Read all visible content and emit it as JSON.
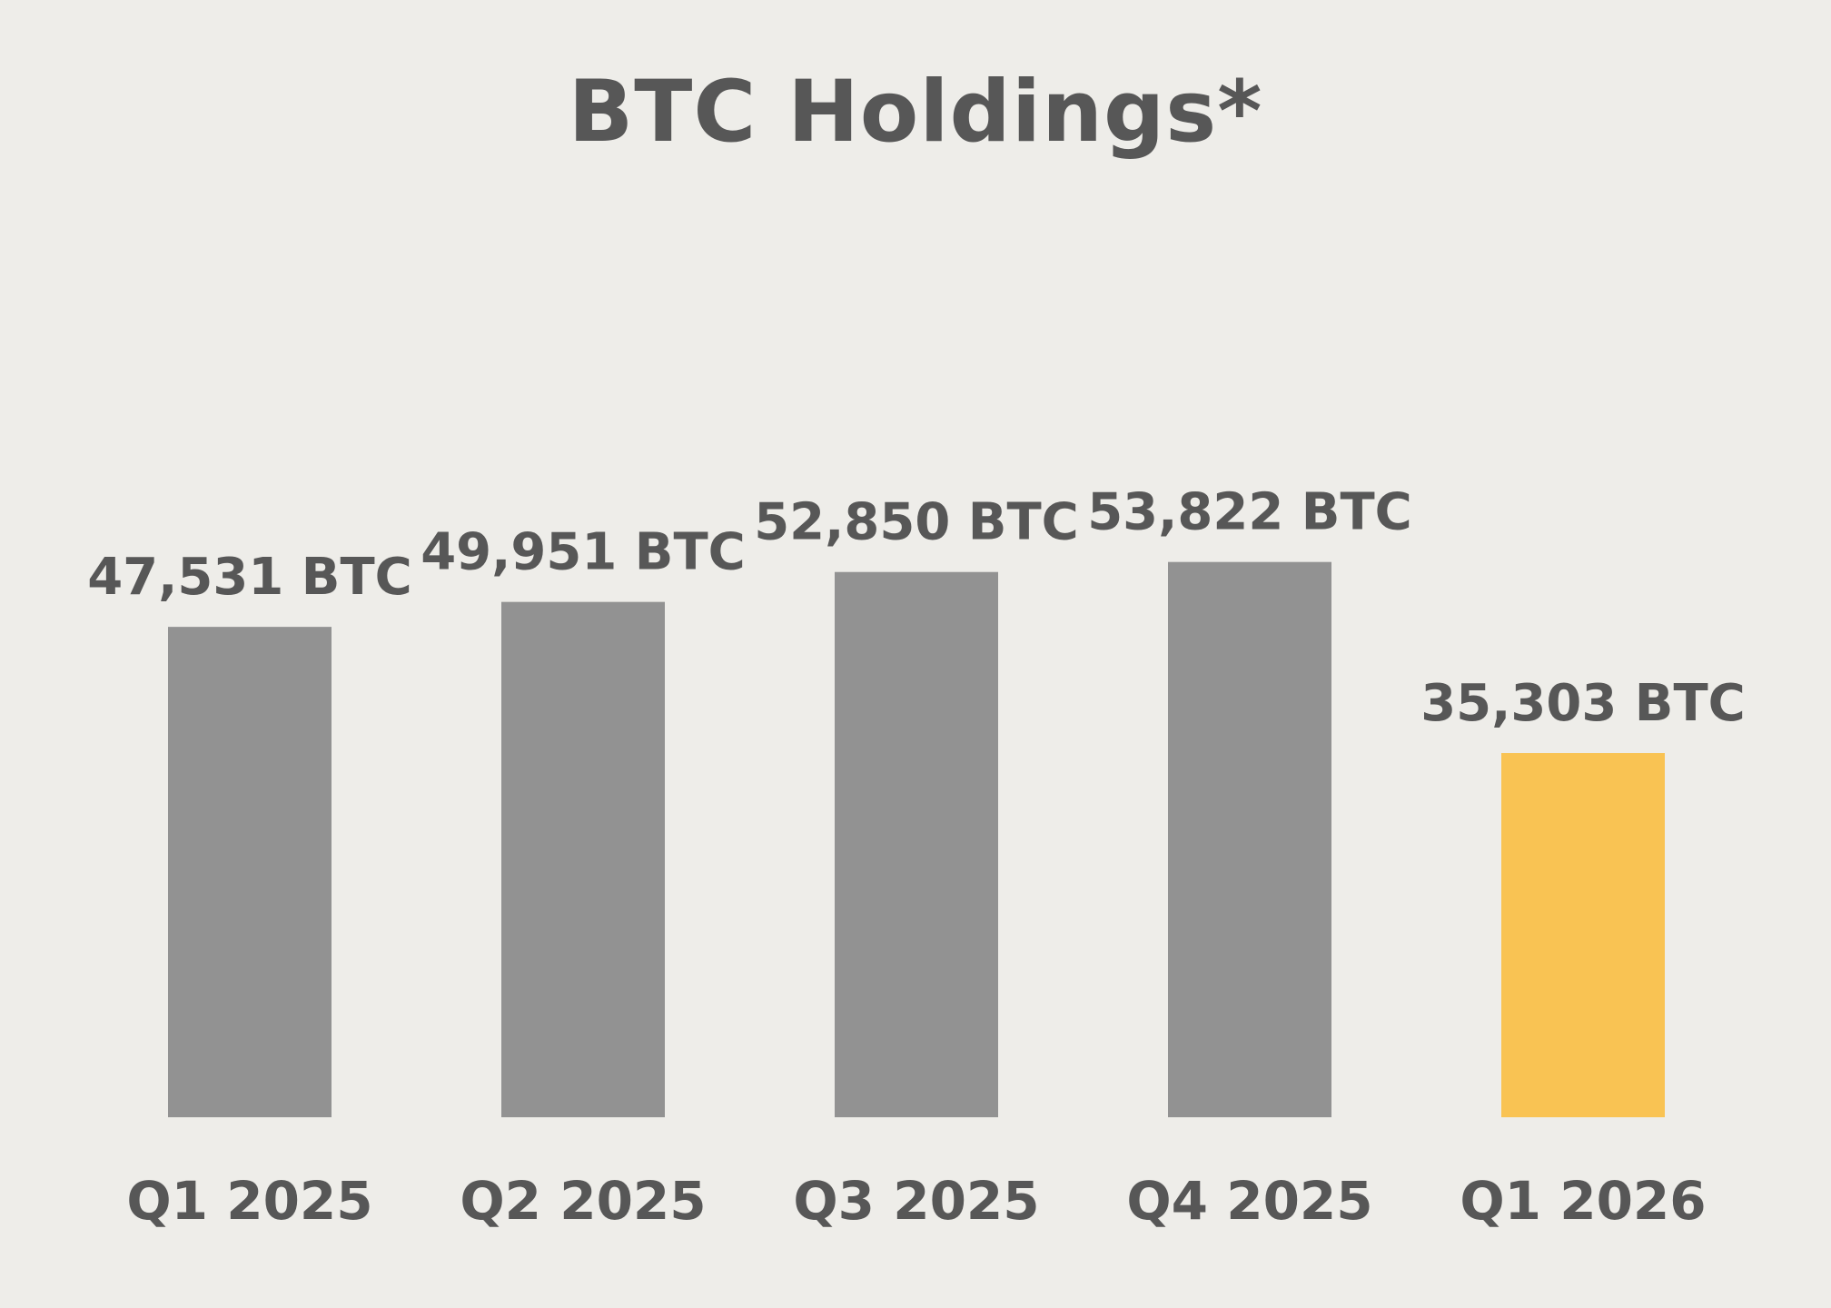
{
  "chart_data": {
    "type": "bar",
    "title": "BTC Holdings*",
    "categories": [
      "Q1 2025",
      "Q2 2025",
      "Q3 2025",
      "Q4 2025",
      "Q1 2026"
    ],
    "values": [
      47531,
      49951,
      52850,
      53822,
      35303
    ],
    "value_labels": [
      "47,531 BTC",
      "49,951 BTC",
      "52,850 BTC",
      "53,822 BTC",
      "35,303 BTC"
    ],
    "unit": "BTC",
    "colors": {
      "default_bar": "#929292",
      "highlight_bar": "#F9C353",
      "text": "#575757",
      "background": "#EEEDE9"
    },
    "highlight_index": 4,
    "grid": false,
    "legend": "none"
  }
}
